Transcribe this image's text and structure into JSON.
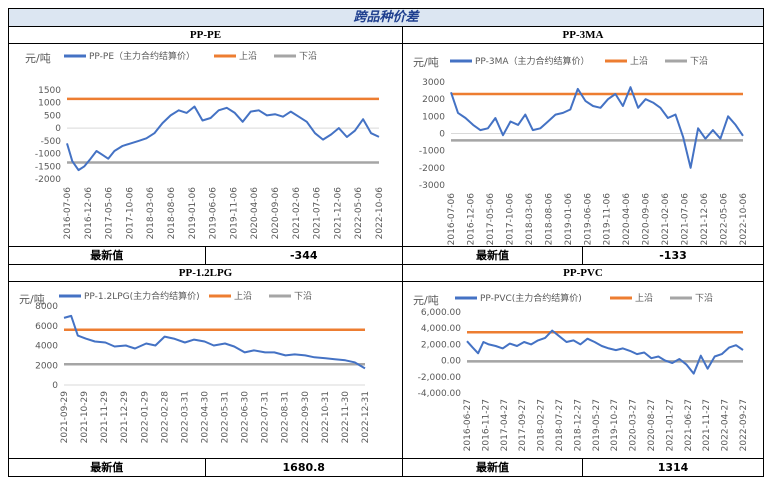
{
  "page_title": "跨品种价差",
  "footer_label": "最新值",
  "colors": {
    "series": "#4472c4",
    "upper": "#ed7d31",
    "lower": "#a5a5a5",
    "title_bg": "#dce6f2"
  },
  "chart_data": [
    {
      "id": "pp-pe",
      "type": "line",
      "title": "PP-PE",
      "unit": "元/吨",
      "legend": [
        "PP-PE（主力合约结算价）",
        "上沿",
        "下沿"
      ],
      "ylim": [
        -2000,
        1500
      ],
      "yticks": [
        -2000,
        -1500,
        -1000,
        -500,
        0,
        500,
        1000,
        1500
      ],
      "ytick_labels": [
        "-2000",
        "-1500",
        "-1000",
        "-500",
        "0",
        "500",
        "1000",
        "1500"
      ],
      "xtick_labels": [
        "2016-07-06",
        "2016-12-06",
        "2017-05-06",
        "2017-10-06",
        "2018-03-06",
        "2018-08-06",
        "2019-01-06",
        "2019-06-06",
        "2019-11-06",
        "2020-04-06",
        "2020-09-06",
        "2021-02-06",
        "2021-07-06",
        "2021-12-06",
        "2022-05-06",
        "2022-10-06"
      ],
      "x_start": "2016-07-06",
      "x_end": "2022-12-31",
      "upper": 1150,
      "lower": -1350,
      "dates": [
        "2016-07-06",
        "2016-08-15",
        "2016-10-01",
        "2016-11-15",
        "2017-01-01",
        "2017-02-15",
        "2017-04-01",
        "2017-05-15",
        "2017-07-01",
        "2017-09-01",
        "2017-11-01",
        "2018-01-01",
        "2018-03-01",
        "2018-05-01",
        "2018-07-01",
        "2018-09-01",
        "2018-11-01",
        "2019-01-01",
        "2019-03-01",
        "2019-05-01",
        "2019-07-01",
        "2019-09-01",
        "2019-11-01",
        "2020-01-01",
        "2020-03-01",
        "2020-05-01",
        "2020-07-01",
        "2020-09-01",
        "2020-11-01",
        "2021-01-01",
        "2021-03-01",
        "2021-05-01",
        "2021-07-01",
        "2021-09-01",
        "2021-11-01",
        "2022-01-01",
        "2022-03-01",
        "2022-05-01",
        "2022-07-01",
        "2022-09-01",
        "2022-11-01",
        "2022-12-31"
      ],
      "values": [
        -600,
        -1300,
        -1650,
        -1500,
        -1200,
        -900,
        -1050,
        -1200,
        -900,
        -700,
        -600,
        -500,
        -400,
        -200,
        200,
        500,
        700,
        600,
        850,
        300,
        400,
        700,
        800,
        600,
        250,
        650,
        700,
        500,
        550,
        450,
        650,
        450,
        250,
        -200,
        -450,
        -250,
        0,
        -350,
        -100,
        350,
        -200,
        -344
      ]
    },
    {
      "id": "pp-3ma",
      "type": "line",
      "title": "PP-3MA",
      "unit": "元/吨",
      "legend": [
        "PP-3MA（主力合约结算价）",
        "上沿",
        "下沿"
      ],
      "ylim": [
        -3000,
        3000
      ],
      "yticks": [
        -3000,
        -2000,
        -1000,
        0,
        1000,
        2000,
        3000
      ],
      "ytick_labels": [
        "-3000",
        "-2000",
        "-1000",
        "0",
        "1000",
        "2000",
        "3000"
      ],
      "xtick_labels": [
        "2016-07-06",
        "2016-12-06",
        "2017-05-06",
        "2017-10-06",
        "2018-03-06",
        "2018-08-06",
        "2019-01-06",
        "2019-06-06",
        "2019-11-06",
        "2020-04-06",
        "2020-09-06",
        "2021-02-06",
        "2021-07-06",
        "2021-12-06",
        "2022-05-06",
        "2022-10-06"
      ],
      "x_start": "2016-07-06",
      "x_end": "2022-12-31",
      "upper": 2300,
      "lower": -400,
      "dates": [
        "2016-07-06",
        "2016-09-01",
        "2016-11-01",
        "2017-01-01",
        "2017-03-01",
        "2017-05-01",
        "2017-07-01",
        "2017-09-01",
        "2017-11-01",
        "2018-01-01",
        "2018-03-01",
        "2018-05-01",
        "2018-07-01",
        "2018-09-01",
        "2018-11-01",
        "2019-01-01",
        "2019-03-01",
        "2019-05-01",
        "2019-07-01",
        "2019-09-01",
        "2019-11-01",
        "2020-01-01",
        "2020-03-01",
        "2020-05-01",
        "2020-07-01",
        "2020-09-01",
        "2020-11-01",
        "2021-01-01",
        "2021-03-01",
        "2021-05-01",
        "2021-07-01",
        "2021-09-01",
        "2021-11-01",
        "2022-01-01",
        "2022-03-01",
        "2022-05-01",
        "2022-07-01",
        "2022-09-01",
        "2022-11-01",
        "2022-12-31"
      ],
      "values": [
        2400,
        1200,
        900,
        500,
        200,
        300,
        900,
        -100,
        700,
        500,
        1100,
        200,
        300,
        700,
        1100,
        1200,
        1400,
        2600,
        1900,
        1600,
        1500,
        2000,
        2300,
        1600,
        2700,
        1500,
        2000,
        1800,
        1500,
        900,
        1100,
        -200,
        -2000,
        300,
        -300,
        200,
        -300,
        1000,
        500,
        -133
      ]
    },
    {
      "id": "pp-1.2lpg",
      "type": "line",
      "title": "PP-1.2LPG",
      "unit": "元/吨",
      "legend": [
        "PP-1.2LPG(主力合约结算价)",
        "上沿",
        "下沿"
      ],
      "ylim": [
        0,
        8000
      ],
      "yticks": [
        0,
        2000,
        4000,
        6000,
        8000
      ],
      "ytick_labels": [
        "0",
        "2000",
        "4000",
        "6000",
        "8000"
      ],
      "xtick_labels": [
        "2021-09-29",
        "2021-10-29",
        "2021-11-29",
        "2021-12-29",
        "2022-01-29",
        "2022-02-28",
        "2022-03-31",
        "2022-04-30",
        "2022-05-31",
        "2022-06-30",
        "2022-07-31",
        "2022-08-31",
        "2022-09-30",
        "2022-10-31",
        "2022-11-30",
        "2022-12-31"
      ],
      "x_start": "2021-09-29",
      "x_end": "2022-12-31",
      "upper": 5600,
      "lower": 2100,
      "dates": [
        "2021-09-29",
        "2021-10-10",
        "2021-10-20",
        "2021-11-01",
        "2021-11-15",
        "2021-12-01",
        "2021-12-15",
        "2022-01-01",
        "2022-01-15",
        "2022-02-01",
        "2022-02-15",
        "2022-03-01",
        "2022-03-15",
        "2022-04-01",
        "2022-04-15",
        "2022-05-01",
        "2022-05-15",
        "2022-06-01",
        "2022-06-15",
        "2022-07-01",
        "2022-07-15",
        "2022-08-01",
        "2022-08-15",
        "2022-09-01",
        "2022-09-15",
        "2022-10-01",
        "2022-10-15",
        "2022-11-01",
        "2022-11-15",
        "2022-12-01",
        "2022-12-15",
        "2022-12-31"
      ],
      "values": [
        6800,
        7000,
        5000,
        4700,
        4400,
        4300,
        3900,
        4000,
        3700,
        4200,
        4000,
        4900,
        4700,
        4300,
        4600,
        4400,
        4000,
        4200,
        3900,
        3300,
        3500,
        3300,
        3300,
        3000,
        3100,
        3000,
        2800,
        2700,
        2600,
        2500,
        2300,
        1681
      ]
    },
    {
      "id": "pp-pvc",
      "type": "line",
      "title": "PP-PVC",
      "unit": "元/吨",
      "legend": [
        "PP-PVC(主力合约结算价)",
        "上沿",
        "下沿"
      ],
      "ylim": [
        -4000,
        6000
      ],
      "yticks": [
        -4000,
        -2000,
        0,
        2000,
        4000,
        6000
      ],
      "ytick_labels": [
        "-4,000.00",
        "-2,000.00",
        "0.00",
        "2,000.00",
        "4,000.00",
        "6,000.00"
      ],
      "xtick_labels": [
        "2016-06-27",
        "2016-11-27",
        "2017-04-27",
        "2017-09-27",
        "2018-02-27",
        "2018-07-27",
        "2018-12-27",
        "2019-05-27",
        "2019-10-27",
        "2020-03-27",
        "2020-08-27",
        "2021-01-27",
        "2021-06-27",
        "2021-11-27",
        "2022-04-27",
        "2022-09-27"
      ],
      "x_start": "2016-06-27",
      "x_end": "2022-12-31",
      "upper": 3500,
      "lower": -100,
      "dates": [
        "2016-06-27",
        "2016-08-15",
        "2016-10-01",
        "2016-11-15",
        "2017-01-01",
        "2017-03-01",
        "2017-05-01",
        "2017-07-01",
        "2017-09-01",
        "2017-11-01",
        "2018-01-01",
        "2018-03-01",
        "2018-05-01",
        "2018-07-01",
        "2018-09-01",
        "2018-11-01",
        "2019-01-01",
        "2019-03-01",
        "2019-05-01",
        "2019-07-01",
        "2019-09-01",
        "2019-11-01",
        "2020-01-01",
        "2020-03-01",
        "2020-05-01",
        "2020-07-01",
        "2020-09-01",
        "2020-11-01",
        "2021-01-01",
        "2021-03-01",
        "2021-05-01",
        "2021-07-01",
        "2021-09-01",
        "2021-11-01",
        "2022-01-01",
        "2022-03-01",
        "2022-05-01",
        "2022-07-01",
        "2022-09-01",
        "2022-11-01",
        "2022-12-31"
      ],
      "values": [
        2400,
        1600,
        900,
        2300,
        2000,
        1800,
        1500,
        2100,
        1800,
        2300,
        2000,
        2500,
        2800,
        3700,
        3000,
        2300,
        2500,
        2000,
        2700,
        2300,
        1800,
        1500,
        1300,
        1500,
        1200,
        800,
        1000,
        300,
        500,
        0,
        -300,
        200,
        -500,
        -1600,
        600,
        -1000,
        500,
        800,
        1600,
        1900,
        1314
      ]
    }
  ],
  "footers": [
    {
      "value": "-344"
    },
    {
      "value": "-133"
    },
    {
      "value": "1680.8"
    },
    {
      "value": "1314"
    }
  ]
}
